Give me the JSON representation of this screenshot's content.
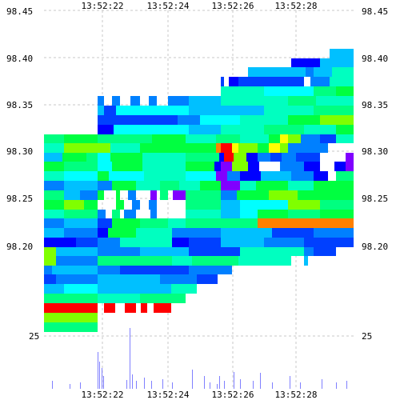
{
  "chart_data": {
    "type": "heatmap",
    "x_ticks": [
      "13:52:22",
      "13:52:24",
      "13:52:26",
      "13:52:28"
    ],
    "y_ticks": [
      "98.45",
      "98.40",
      "98.35",
      "98.30",
      "98.25",
      "98.20"
    ],
    "volume_tick": "25",
    "ylim": [
      98.2,
      98.45
    ],
    "grid": true,
    "colors": {
      "red": "#ff0000",
      "orange": "#ff8000",
      "yellow": "#ffff00",
      "lime": "#80ff00",
      "green": "#00ff40",
      "spring": "#00ff80",
      "aqua": "#00ffc0",
      "cyan": "#00ffff",
      "sky": "#00c0ff",
      "azure": "#0080ff",
      "blue": "#0040ff",
      "deep": "#0000ff",
      "violet": "#8000ff",
      "volume": "#8080ff"
    }
  }
}
